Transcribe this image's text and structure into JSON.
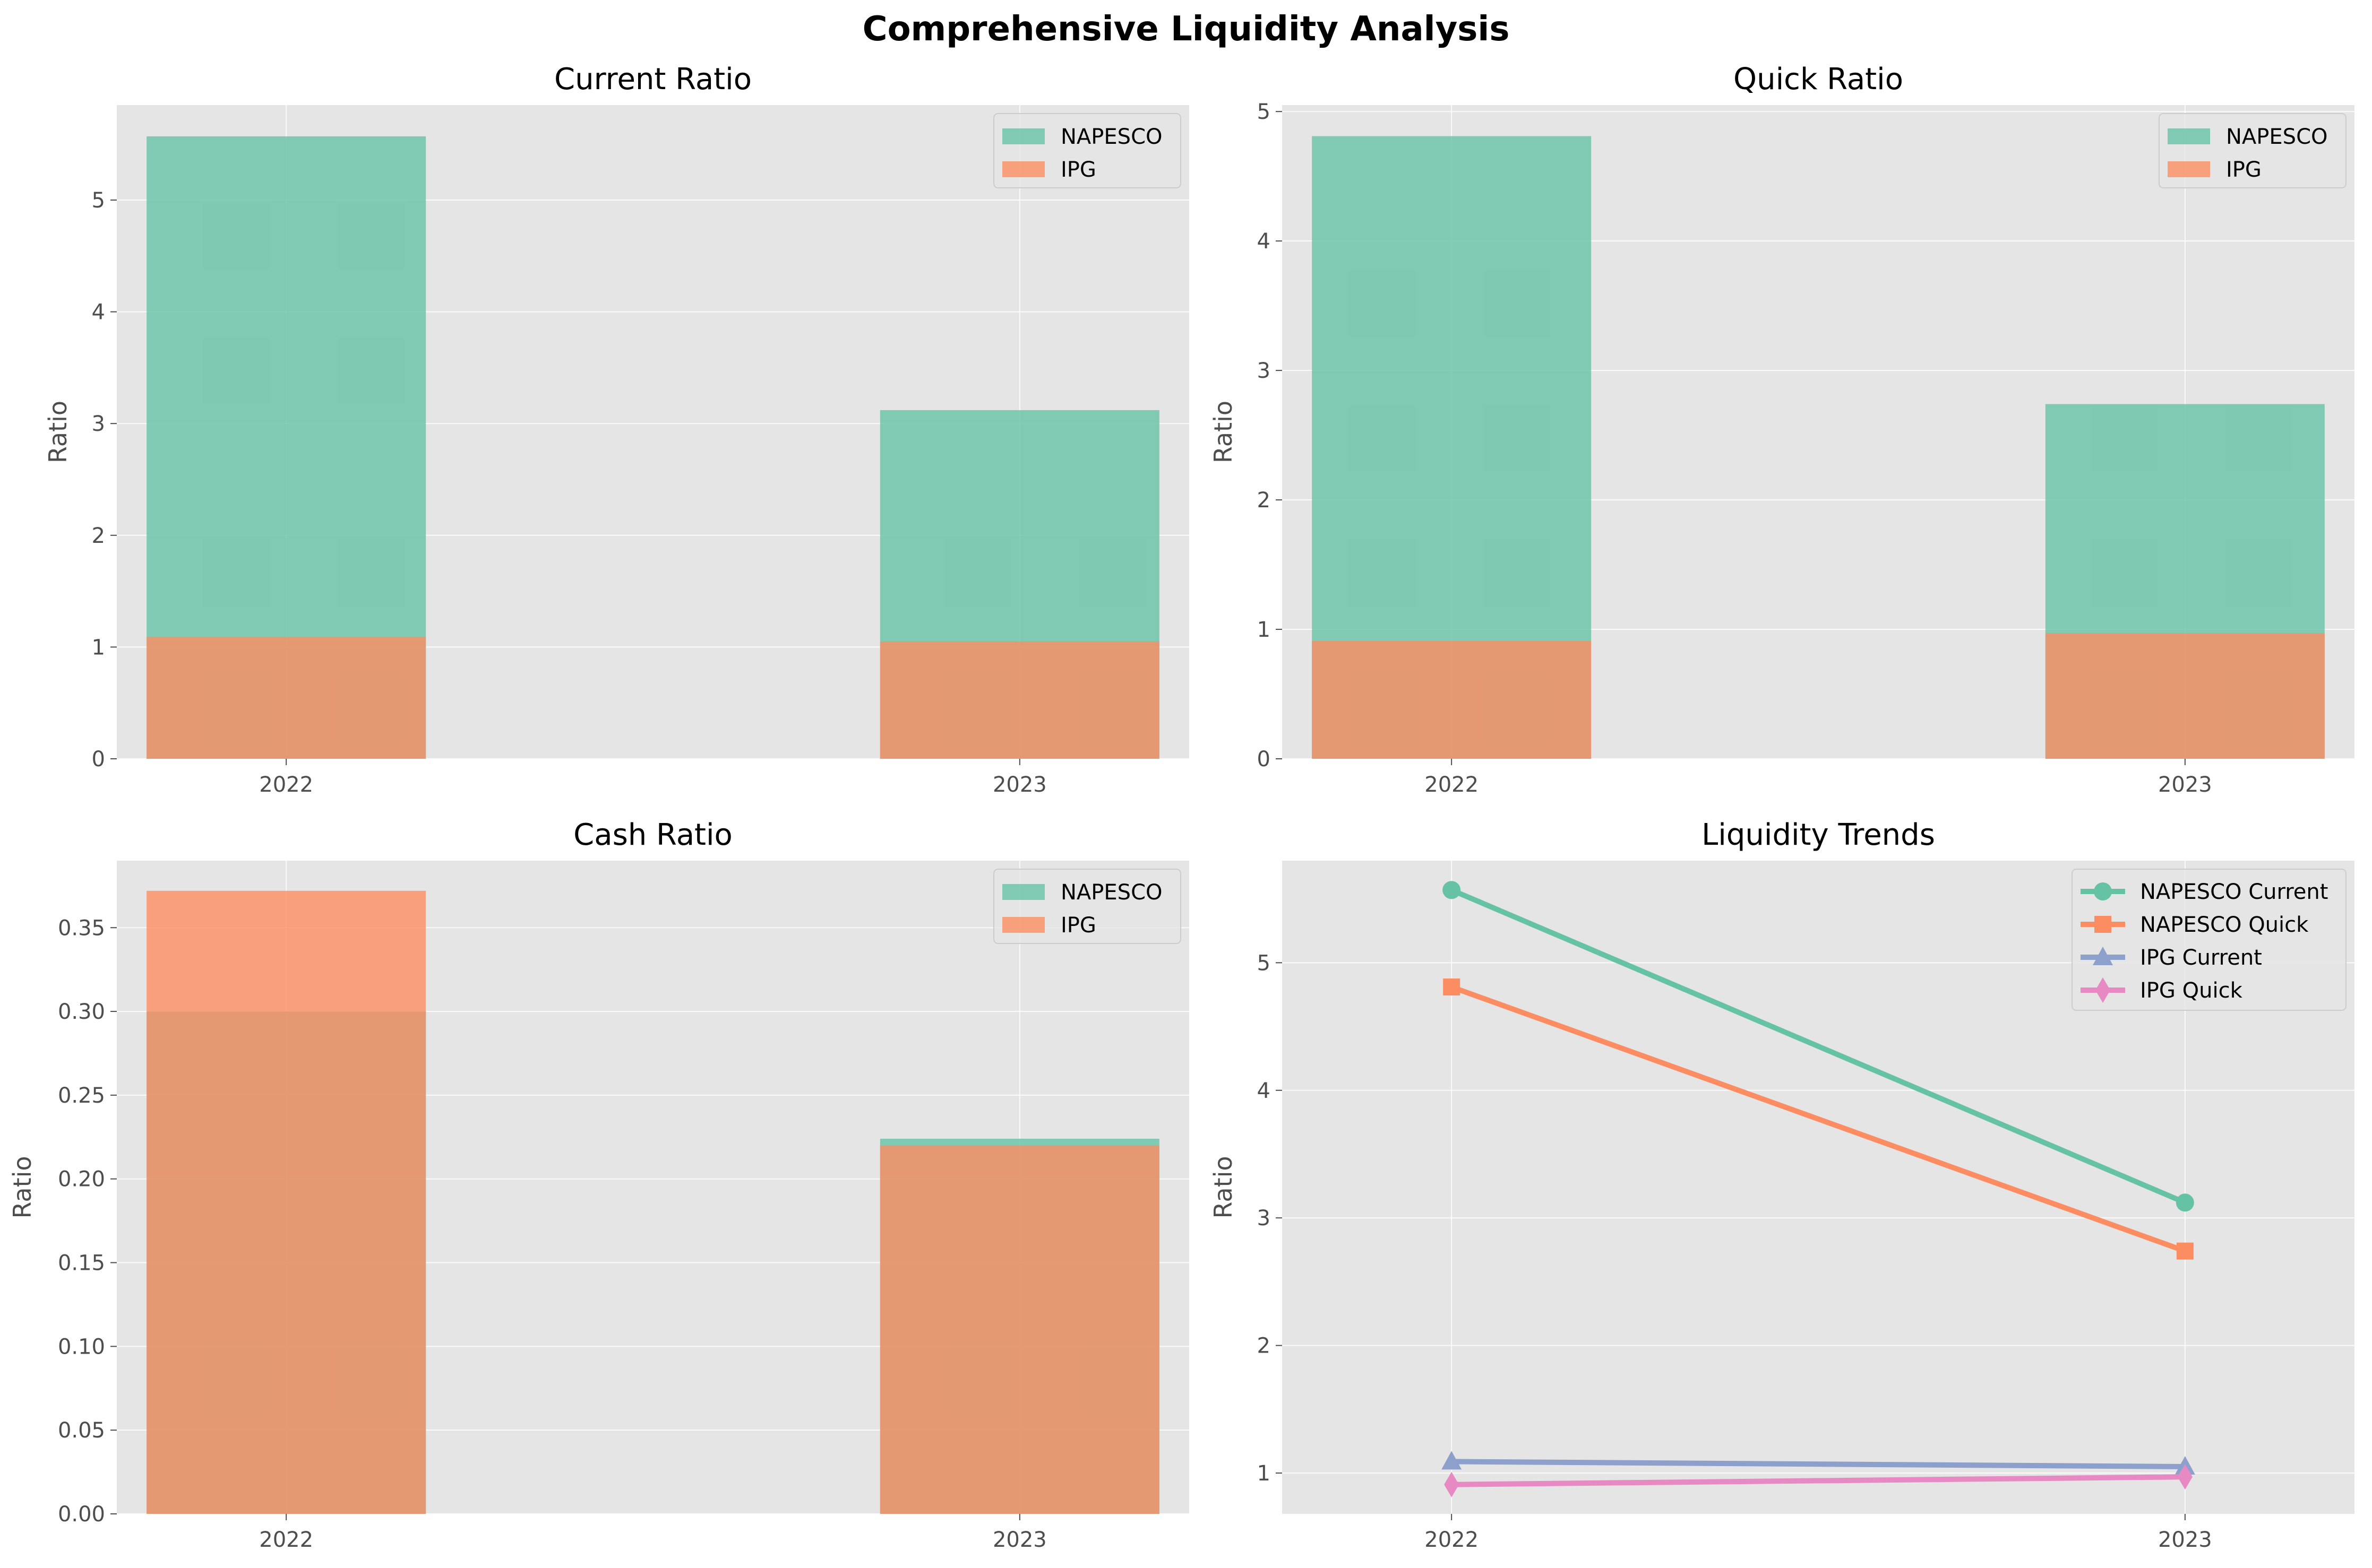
{
  "title": "Comprehensive Liquidity Analysis",
  "colors": {
    "napesco": "#66c2a5",
    "ipg": "#fc8d62",
    "ipg_current": "#8da0cb",
    "ipg_quick": "#e78ac3",
    "panel_bg": "#e5e5e5",
    "grid": "#ffffff"
  },
  "chart_data": [
    {
      "type": "bar",
      "title": "Current Ratio",
      "ylabel": "Ratio",
      "categories": [
        "2022",
        "2023"
      ],
      "series": [
        {
          "name": "NAPESCO",
          "values": [
            5.57,
            3.12
          ]
        },
        {
          "name": "IPG",
          "values": [
            1.09,
            1.05
          ]
        }
      ],
      "ylim": [
        0,
        5.85
      ],
      "yticks": [
        0,
        1,
        2,
        3,
        4,
        5
      ],
      "ytick_labels": [
        "0",
        "1",
        "2",
        "3",
        "4",
        "5"
      ],
      "grid": true,
      "legend": "top-right"
    },
    {
      "type": "bar",
      "title": "Quick Ratio",
      "ylabel": "Ratio",
      "categories": [
        "2022",
        "2023"
      ],
      "series": [
        {
          "name": "NAPESCO",
          "values": [
            4.81,
            2.74
          ]
        },
        {
          "name": "IPG",
          "values": [
            0.91,
            0.97
          ]
        }
      ],
      "ylim": [
        0,
        5.05
      ],
      "yticks": [
        0,
        1,
        2,
        3,
        4,
        5
      ],
      "ytick_labels": [
        "0",
        "1",
        "2",
        "3",
        "4",
        "5"
      ],
      "grid": true,
      "legend": "top-right"
    },
    {
      "type": "bar",
      "title": "Cash Ratio",
      "ylabel": "Ratio",
      "categories": [
        "2022",
        "2023"
      ],
      "series": [
        {
          "name": "NAPESCO",
          "values": [
            0.3,
            0.224
          ]
        },
        {
          "name": "IPG",
          "values": [
            0.372,
            0.22
          ]
        }
      ],
      "ylim": [
        0,
        0.39
      ],
      "yticks": [
        0,
        0.05,
        0.1,
        0.15,
        0.2,
        0.25,
        0.3,
        0.35
      ],
      "ytick_labels": [
        "0.00",
        "0.05",
        "0.10",
        "0.15",
        "0.20",
        "0.25",
        "0.30",
        "0.35"
      ],
      "grid": true,
      "legend": "top-right"
    },
    {
      "type": "line",
      "title": "Liquidity Trends",
      "ylabel": "Ratio",
      "categories": [
        "2022",
        "2023"
      ],
      "series": [
        {
          "name": "NAPESCO Current",
          "values": [
            5.57,
            3.12
          ],
          "marker": "circle"
        },
        {
          "name": "NAPESCO Quick",
          "values": [
            4.81,
            2.74
          ],
          "marker": "square"
        },
        {
          "name": "IPG Current",
          "values": [
            1.09,
            1.05
          ],
          "marker": "triangle"
        },
        {
          "name": "IPG Quick",
          "values": [
            0.91,
            0.97
          ],
          "marker": "diamond"
        }
      ],
      "ylim": [
        0.68,
        5.8
      ],
      "yticks": [
        1,
        2,
        3,
        4,
        5
      ],
      "ytick_labels": [
        "1",
        "2",
        "3",
        "4",
        "5"
      ],
      "grid": true,
      "legend": "top-right"
    }
  ]
}
